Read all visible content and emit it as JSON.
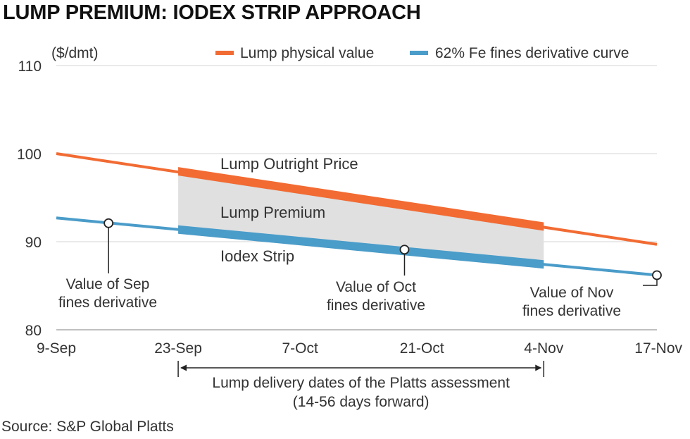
{
  "title": "LUMP PREMIUM: IODEX STRIP APPROACH",
  "source": "Source: S&P Global Platts",
  "chart_data": {
    "type": "line",
    "ylabel": "($/dmt)",
    "ylim": [
      80,
      110
    ],
    "yticks": [
      80,
      90,
      100,
      110
    ],
    "grid": true,
    "legend_position": "top-right",
    "x_ticks": [
      "9-Sep",
      "23-Sep",
      "7-Oct",
      "21-Oct",
      "4-Nov",
      "17-Nov"
    ],
    "series": [
      {
        "name": "Lump physical value",
        "color": "#f26b33",
        "x": [
          "9-Sep",
          "17-Nov"
        ],
        "values": [
          100.0,
          89.7
        ]
      },
      {
        "name": "62% Fe fines derivative curve",
        "color": "#4a9cc9",
        "x": [
          "9-Sep",
          "17-Nov"
        ],
        "values": [
          92.7,
          86.2
        ]
      }
    ],
    "band": {
      "x": [
        "23-Sep",
        "4-Nov"
      ],
      "color": "#e0e0e0"
    },
    "band_labels": [
      "Lump Outright Price",
      "Lump Premium",
      "Iodex Strip"
    ],
    "markers": [
      {
        "x": "15-Sep",
        "value": 92.1,
        "label_lines": [
          "Value of Sep",
          "fines derivative"
        ]
      },
      {
        "x": "19-Oct",
        "value": 89.1,
        "label_lines": [
          "Value of Oct",
          "fines derivative"
        ]
      },
      {
        "x": "17-Nov",
        "value": 86.2,
        "label_lines": [
          "Value of Nov",
          "fines derivative"
        ]
      }
    ],
    "range_annotation": {
      "from": "23-Sep",
      "to": "4-Nov",
      "lines": [
        "Lump delivery dates of the Platts assessment",
        "(14-56 days forward)"
      ]
    }
  }
}
